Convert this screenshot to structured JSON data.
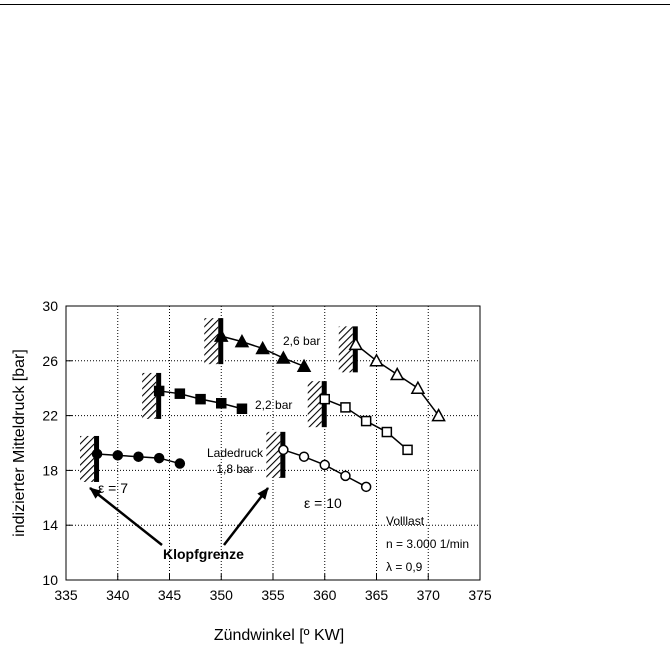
{
  "chart_data": {
    "type": "scatter",
    "xlabel": "Zündwinkel [º KW]",
    "ylabel": "indizierter Mitteldruck [bar]",
    "xlim": [
      335,
      375
    ],
    "ylim": [
      10,
      30
    ],
    "xticks": [
      335,
      340,
      345,
      350,
      355,
      360,
      365,
      370,
      375
    ],
    "yticks": [
      10,
      14,
      18,
      22,
      26,
      30
    ],
    "grid": true,
    "series": [
      {
        "name": "1,8 bar",
        "group": "ε = 7",
        "marker": "circle",
        "filled": true,
        "x": [
          338,
          340,
          342,
          344,
          346
        ],
        "y": [
          19.2,
          19.1,
          19.0,
          18.9,
          18.5
        ]
      },
      {
        "name": "2,2 bar",
        "group": "ε = 7",
        "marker": "square",
        "filled": true,
        "x": [
          344,
          346,
          348,
          350,
          352
        ],
        "y": [
          23.8,
          23.6,
          23.2,
          22.9,
          22.5
        ]
      },
      {
        "name": "2,6 bar",
        "group": "ε = 7",
        "marker": "triangle",
        "filled": true,
        "x": [
          350,
          352,
          354,
          356,
          358
        ],
        "y": [
          27.8,
          27.4,
          26.9,
          26.2,
          25.6
        ]
      },
      {
        "name": "1,8 bar",
        "group": "ε = 10",
        "marker": "circle",
        "filled": false,
        "x": [
          356,
          358,
          360,
          362,
          364
        ],
        "y": [
          19.5,
          19.0,
          18.4,
          17.6,
          16.8
        ]
      },
      {
        "name": "2,2 bar",
        "group": "ε = 10",
        "marker": "square",
        "filled": false,
        "x": [
          360,
          362,
          364,
          366,
          368
        ],
        "y": [
          23.2,
          22.6,
          21.6,
          20.8,
          19.5
        ]
      },
      {
        "name": "2,6 bar",
        "group": "ε = 10",
        "marker": "triangle",
        "filled": false,
        "x": [
          363,
          365,
          367,
          369,
          371
        ],
        "y": [
          27.2,
          26.0,
          25.0,
          24.0,
          22.0
        ]
      }
    ],
    "knock_limits": [
      {
        "x": 338,
        "y": 19.2
      },
      {
        "x": 344,
        "y": 23.8
      },
      {
        "x": 350,
        "y": 27.8
      },
      {
        "x": 356,
        "y": 19.5
      },
      {
        "x": 360,
        "y": 23.2
      },
      {
        "x": 363,
        "y": 27.2
      }
    ],
    "annotations": {
      "label_26": "2,6 bar",
      "label_22": "2,2 bar",
      "label_ladedruck": "Ladedruck",
      "label_18": "1,8 bar",
      "eps7": "ε = 7",
      "eps10": "ε = 10",
      "klopfgrenze": "Klopfgrenze",
      "info_line1": "Volllast",
      "info_line2": "n = 3.000 1/min",
      "info_line3": "λ = 0,9"
    }
  }
}
